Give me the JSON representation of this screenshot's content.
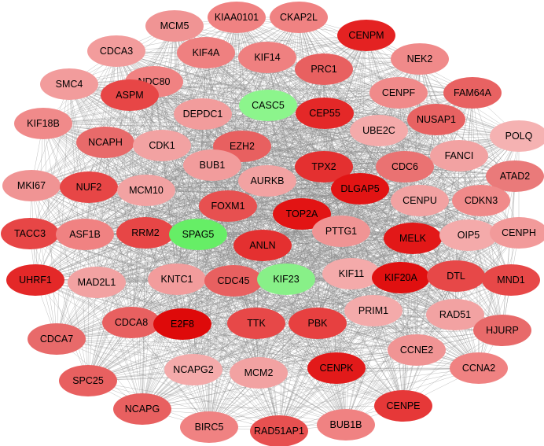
{
  "nodes": [
    {
      "label": "MCM5",
      "color": "#f09494"
    },
    {
      "label": "KIAA0101",
      "color": "#f08282"
    },
    {
      "label": "CKAP2L",
      "color": "#f08282"
    },
    {
      "label": "CDCA3",
      "color": "#f29c9c"
    },
    {
      "label": "CENPM",
      "color": "#e42222"
    },
    {
      "label": "KIF4A",
      "color": "#ef8080"
    },
    {
      "label": "KIF14",
      "color": "#ef8080"
    },
    {
      "label": "NEK2",
      "color": "#f08a8a"
    },
    {
      "label": "PRC1",
      "color": "#e86060"
    },
    {
      "label": "NDC80",
      "color": "#f08282"
    },
    {
      "label": "SMC4",
      "color": "#f29c9c"
    },
    {
      "label": "ASPM",
      "color": "#e74646"
    },
    {
      "label": "CENPF",
      "color": "#f08a8a"
    },
    {
      "label": "FAM64A",
      "color": "#e86262"
    },
    {
      "label": "CASC5",
      "color": "#8cf58c"
    },
    {
      "label": "CEP55",
      "color": "#e42828"
    },
    {
      "label": "NUSAP1",
      "color": "#e86262"
    },
    {
      "label": "DEPDC1",
      "color": "#f29c9c"
    },
    {
      "label": "KIF18B",
      "color": "#f08a8a"
    },
    {
      "label": "NCAPH",
      "color": "#e86a6a"
    },
    {
      "label": "UBE2C",
      "color": "#f4aaaa"
    },
    {
      "label": "POLQ",
      "color": "#f5b2b2"
    },
    {
      "label": "CDK1",
      "color": "#f2a2a2"
    },
    {
      "label": "EZH2",
      "color": "#e86060"
    },
    {
      "label": "FANCI",
      "color": "#f2a2a2"
    },
    {
      "label": "BUB1",
      "color": "#f29c9c"
    },
    {
      "label": "TPX2",
      "color": "#e43030"
    },
    {
      "label": "CDC6",
      "color": "#ea7272"
    },
    {
      "label": "MKI67",
      "color": "#f09494"
    },
    {
      "label": "NUF2",
      "color": "#e74646"
    },
    {
      "label": "AURKB",
      "color": "#f2a2a2"
    },
    {
      "label": "ATAD2",
      "color": "#ea7a7a"
    },
    {
      "label": "MCM10",
      "color": "#f2a2a2"
    },
    {
      "label": "DLGAP5",
      "color": "#e21414"
    },
    {
      "label": "CENPU",
      "color": "#f2a2a2"
    },
    {
      "label": "CDKN3",
      "color": "#f08a8a"
    },
    {
      "label": "FOXM1",
      "color": "#e75050"
    },
    {
      "label": "TOP2A",
      "color": "#e21414"
    },
    {
      "label": "TACC3",
      "color": "#e74646"
    },
    {
      "label": "ASF1B",
      "color": "#f08282"
    },
    {
      "label": "RRM2",
      "color": "#e74646"
    },
    {
      "label": "SPAG5",
      "color": "#66ee66"
    },
    {
      "label": "PTTG1",
      "color": "#f09494"
    },
    {
      "label": "MELK",
      "color": "#e21818"
    },
    {
      "label": "OIP5",
      "color": "#f4aaaa"
    },
    {
      "label": "CENPH",
      "color": "#f29a9a"
    },
    {
      "label": "ANLN",
      "color": "#e43030"
    },
    {
      "label": "UHRF1",
      "color": "#e42828"
    },
    {
      "label": "MAD2L1",
      "color": "#f2a2a2"
    },
    {
      "label": "KNTC1",
      "color": "#f29c9c"
    },
    {
      "label": "CDC45",
      "color": "#e86060"
    },
    {
      "label": "KIF23",
      "color": "#88f088"
    },
    {
      "label": "KIF11",
      "color": "#f4aaaa"
    },
    {
      "label": "KIF20A",
      "color": "#e01010"
    },
    {
      "label": "DTL",
      "color": "#e74848"
    },
    {
      "label": "MND1",
      "color": "#e74848"
    },
    {
      "label": "PRIM1",
      "color": "#f4aaaa"
    },
    {
      "label": "RAD51",
      "color": "#f2a2a2"
    },
    {
      "label": "CDCA8",
      "color": "#e86060"
    },
    {
      "label": "E2F8",
      "color": "#de0a0a"
    },
    {
      "label": "TTK",
      "color": "#e74848"
    },
    {
      "label": "PBK",
      "color": "#e74040"
    },
    {
      "label": "HJURP",
      "color": "#e86a6a"
    },
    {
      "label": "CDCA7",
      "color": "#e86a6a"
    },
    {
      "label": "CCNE2",
      "color": "#f09494"
    },
    {
      "label": "NCAPG2",
      "color": "#f4aaaa"
    },
    {
      "label": "MCM2",
      "color": "#f2a2a2"
    },
    {
      "label": "CENPK",
      "color": "#e21a1a"
    },
    {
      "label": "CCNA2",
      "color": "#f08282"
    },
    {
      "label": "SPC25",
      "color": "#e86060"
    },
    {
      "label": "NCAPG",
      "color": "#e86060"
    },
    {
      "label": "CENPE",
      "color": "#e63838"
    },
    {
      "label": "BUB1B",
      "color": "#f08282"
    },
    {
      "label": "BIRC5",
      "color": "#f08282"
    },
    {
      "label": "RAD51AP1",
      "color": "#e75050"
    }
  ]
}
